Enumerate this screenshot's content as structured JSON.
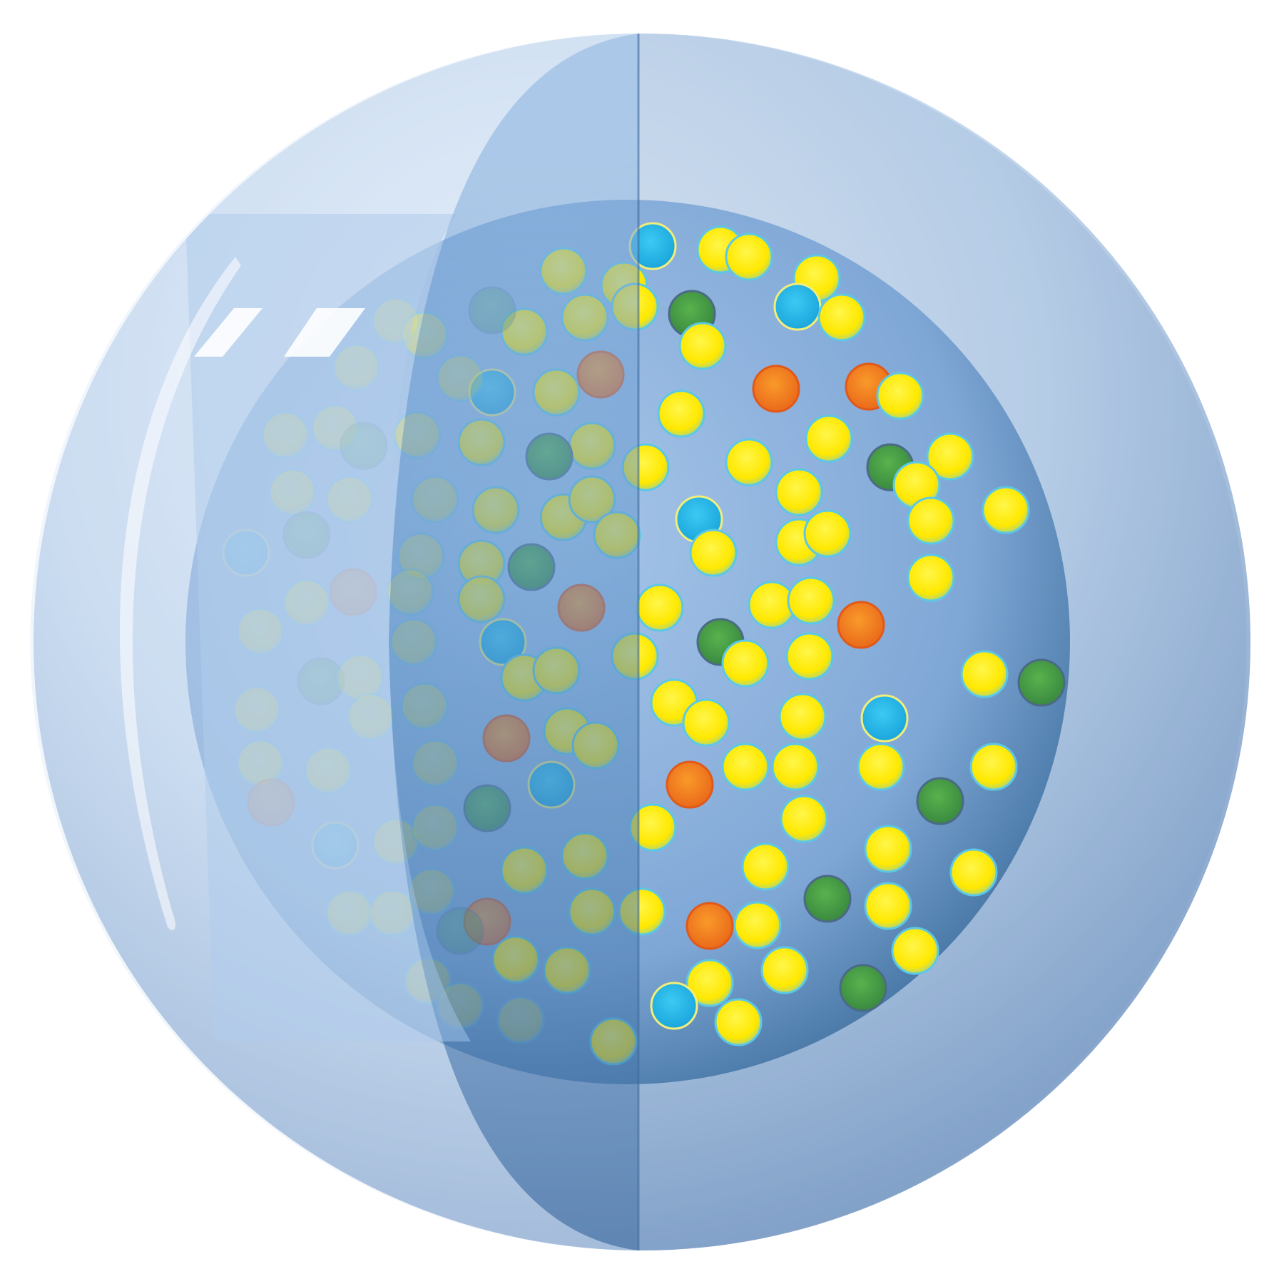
{
  "illustration": {
    "subject": "sphere-cutaway",
    "palette": {
      "background": "#ffffff",
      "outer_sphere_light": "#eef4fb",
      "outer_sphere_mid": "#c5d8ee",
      "outer_sphere_dark": "#7f9ec6",
      "inner_core_light": "#a9c7ea",
      "inner_core_dark": "#3e6f9d",
      "cut_band_light": "#8fb6e2",
      "cut_band_dark": "#3d6a9f",
      "highlight": "#ffffff",
      "yellow_particle": "#ffe800",
      "yellow_rim": "#5cc8e6",
      "blue_particle": "#1eb9ec",
      "blue_rim": "#f2ee7a",
      "orange_particle": "#f7851f",
      "orange_rim": "#e0591a",
      "green_particle": "#4aa446",
      "green_rim": "#4b6a86"
    },
    "particle_types": [
      "yellow",
      "blue",
      "orange",
      "green"
    ]
  }
}
